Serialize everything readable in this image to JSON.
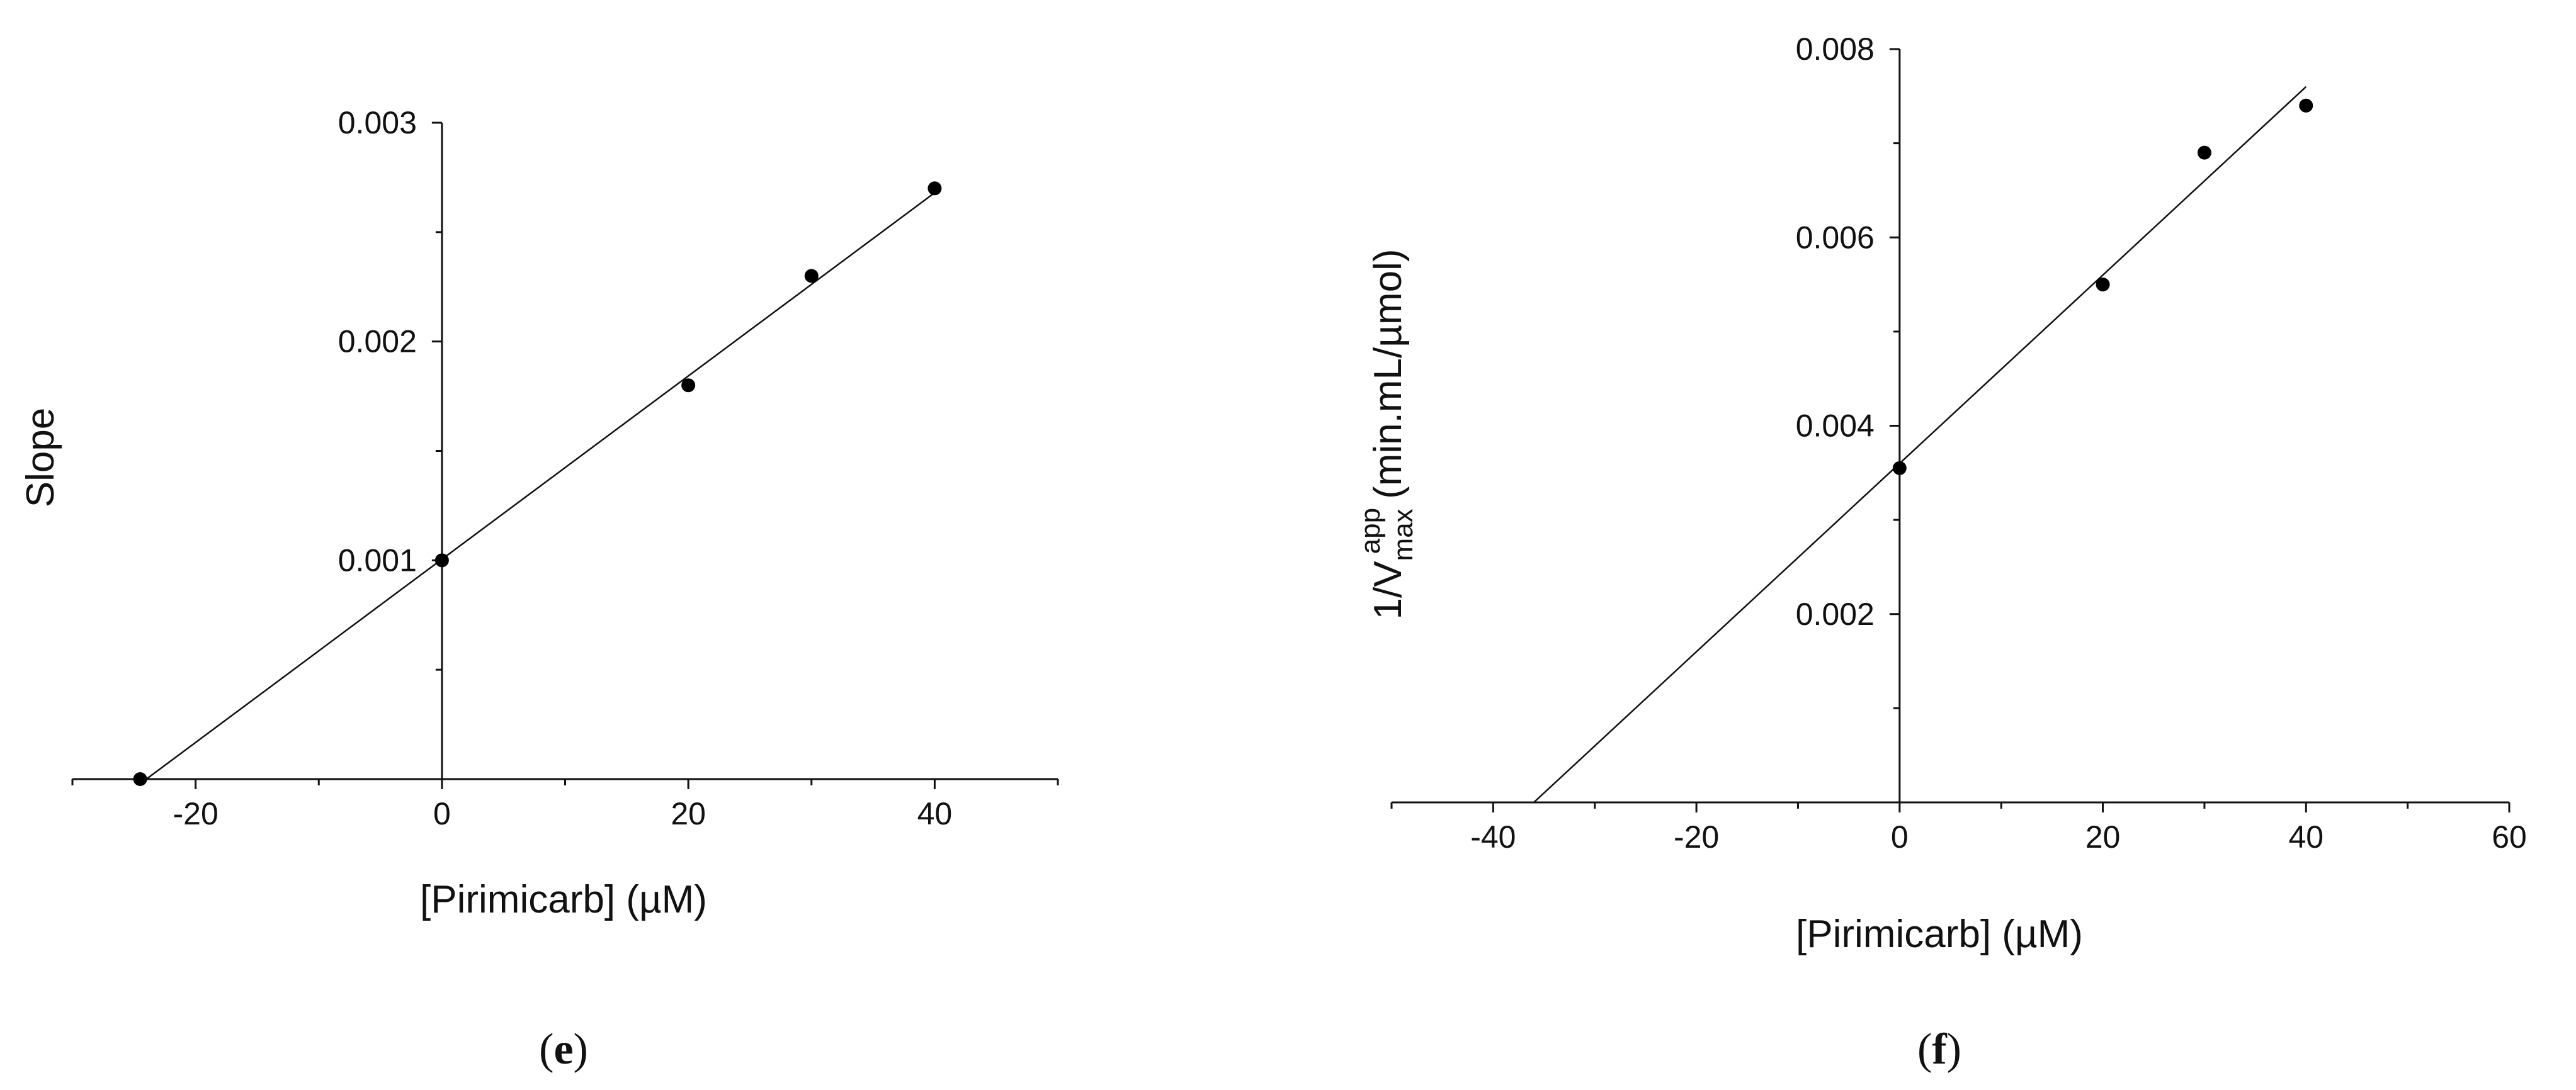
{
  "chart_data": [
    {
      "type": "scatter",
      "panel": "e",
      "xlabel": "[Pirimicarb] (µM)",
      "ylabel": "Slope",
      "xlim": [
        -30,
        50
      ],
      "ylim": [
        0,
        0.003
      ],
      "xticks": [
        "-20",
        "0",
        "20",
        "40"
      ],
      "yticks": [
        "0.001",
        "0.002",
        "0.003"
      ],
      "points": [
        {
          "x": -24.5,
          "y": 0
        },
        {
          "x": 0,
          "y": 0.001
        },
        {
          "x": 20,
          "y": 0.0018
        },
        {
          "x": 30,
          "y": 0.0023
        },
        {
          "x": 40,
          "y": 0.0027
        }
      ],
      "fit_line": {
        "x": [
          -24,
          40
        ],
        "y": [
          0,
          0.00268
        ]
      }
    },
    {
      "type": "scatter",
      "panel": "f",
      "xlabel": "[Pirimicarb] (µM)",
      "ylabel_main": "1/V",
      "ylabel_sub": "max",
      "ylabel_sup": "app",
      "ylabel_unit": "(min.mL/µmol)",
      "xlim": [
        -50,
        60
      ],
      "ylim": [
        0,
        0.008
      ],
      "xticks": [
        "-40",
        "-20",
        "0",
        "20",
        "40",
        "60"
      ],
      "yticks": [
        "0.002",
        "0.004",
        "0.006",
        "0.008"
      ],
      "points": [
        {
          "x": 0,
          "y": 0.00355
        },
        {
          "x": 20,
          "y": 0.0055
        },
        {
          "x": 30,
          "y": 0.0069
        },
        {
          "x": 40,
          "y": 0.0074
        }
      ],
      "fit_line": {
        "x": [
          -36,
          40
        ],
        "y": [
          0,
          0.0076
        ]
      }
    }
  ],
  "panels": {
    "e": {
      "label_open": "(",
      "label_letter": "e",
      "label_close": ")"
    },
    "f": {
      "label_open": "(",
      "label_letter": "f",
      "label_close": ")"
    }
  }
}
